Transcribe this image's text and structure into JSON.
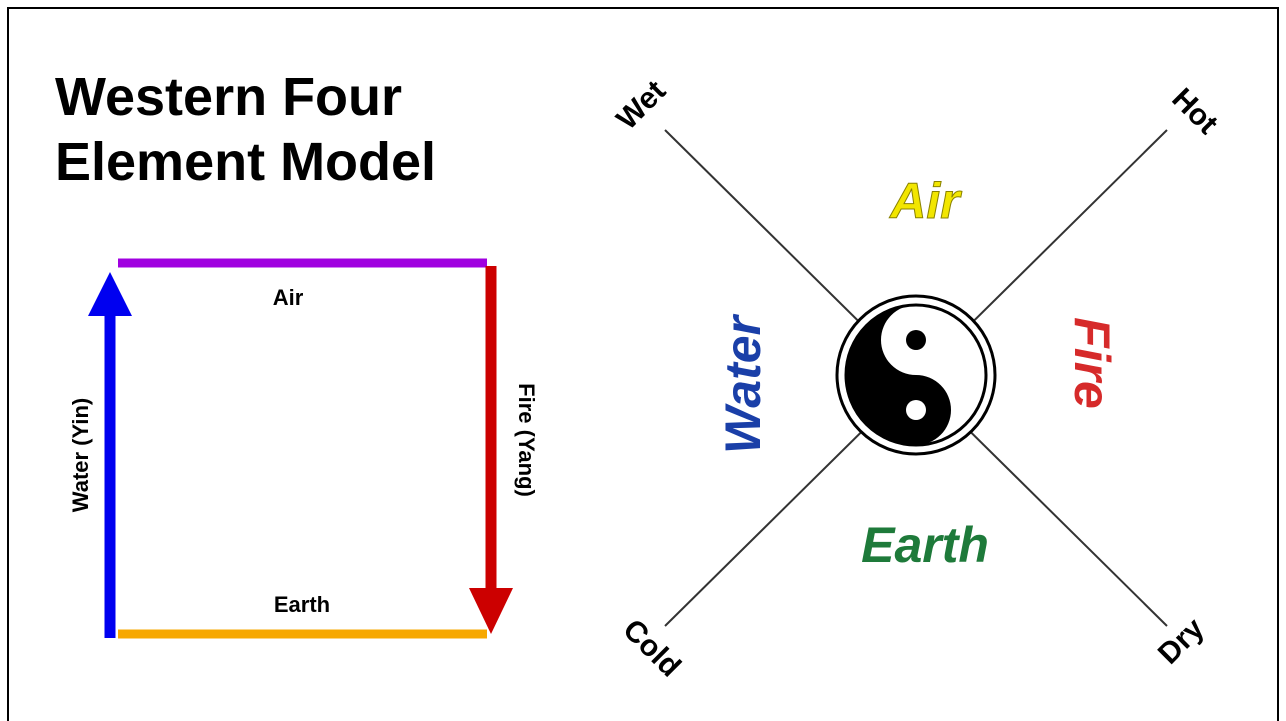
{
  "title": [
    "Western Four",
    "Element Model"
  ],
  "square": {
    "top": "Air",
    "bottom": "Earth",
    "left": "Water (Yin)",
    "right": "Fire (Yang)"
  },
  "cross": {
    "corners": {
      "top_left": "Wet",
      "top_right": "Hot",
      "bottom_left": "Cold",
      "bottom_right": "Dry"
    },
    "elements": {
      "top": "Air",
      "left": "Water",
      "right": "Fire",
      "bottom": "Earth"
    }
  }
}
